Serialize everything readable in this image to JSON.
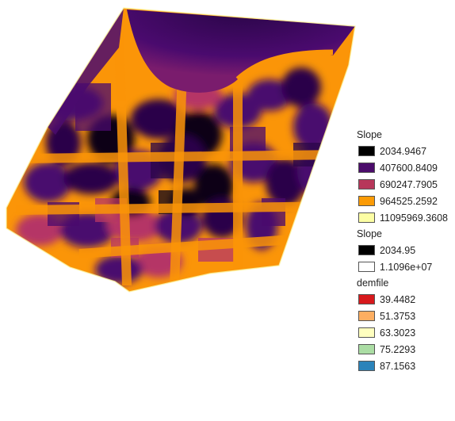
{
  "colors": {
    "dark": "#0d0419",
    "purple": "#4a0a6e",
    "deep": "#2a0648",
    "magenta": "#b53566",
    "orange": "#fb9508",
    "pale": "#fbf6a6"
  },
  "legend": {
    "groups": [
      {
        "title": "Slope",
        "entries": [
          {
            "label": "2034.9467",
            "color": "#000000"
          },
          {
            "label": "407600.8409",
            "color": "#4b0c6b"
          },
          {
            "label": "690247.7905",
            "color": "#b7375a"
          },
          {
            "label": "964525.2592",
            "color": "#fb9b06"
          },
          {
            "label": "11095969.3608",
            "color": "#fcfea4"
          }
        ]
      },
      {
        "title": "Slope",
        "entries": [
          {
            "label": "2034.95",
            "color": "#000000"
          },
          {
            "label": "1.1096e+07",
            "color": "#ffffff"
          }
        ]
      },
      {
        "title": "demfile",
        "entries": [
          {
            "label": "39.4482",
            "color": "#d7191c"
          },
          {
            "label": "51.3753",
            "color": "#fdae61"
          },
          {
            "label": "63.3023",
            "color": "#ffffbf"
          },
          {
            "label": "75.2293",
            "color": "#abdda4"
          },
          {
            "label": "87.1563",
            "color": "#2b83ba"
          }
        ]
      }
    ]
  }
}
